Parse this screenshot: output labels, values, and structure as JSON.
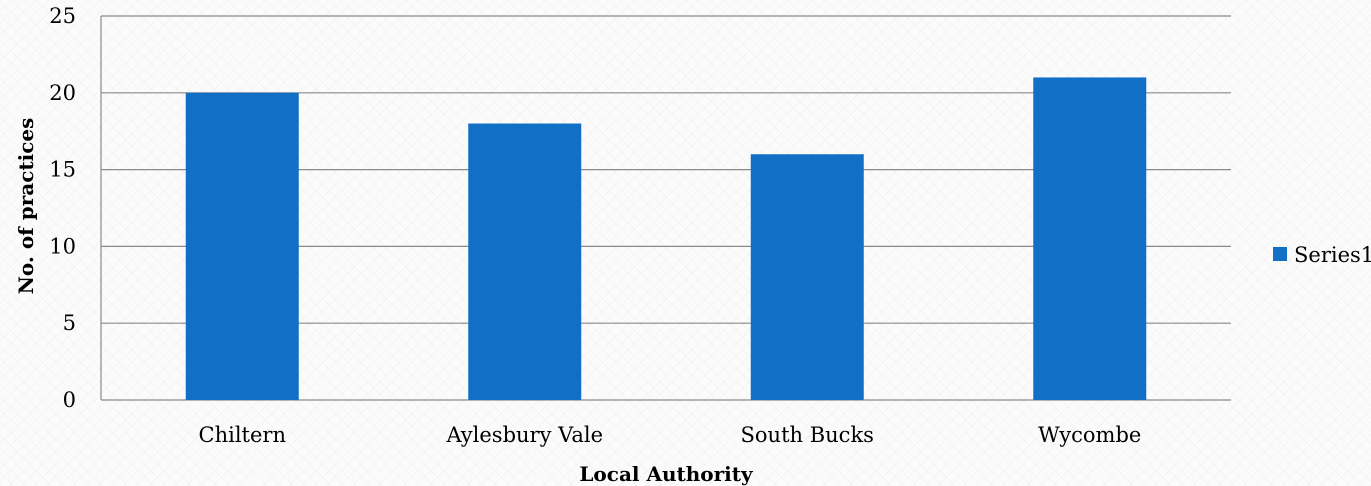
{
  "chart_data": {
    "type": "bar",
    "categories": [
      "Chiltern",
      "Aylesbury Vale",
      "South Bucks",
      "Wycombe"
    ],
    "series": [
      {
        "name": "Series1",
        "values": [
          20,
          18,
          16,
          21
        ]
      }
    ],
    "xlabel": "Local Authority",
    "ylabel": "No. of practices",
    "ylim": [
      0,
      25
    ],
    "yticks": [
      "0",
      "5",
      "10",
      "15",
      "20",
      "25"
    ],
    "grid": true,
    "legend": {
      "position": "right",
      "label": "Series1"
    },
    "colors": {
      "bar": "#1170c6",
      "grid": "#8a8a8a"
    }
  }
}
